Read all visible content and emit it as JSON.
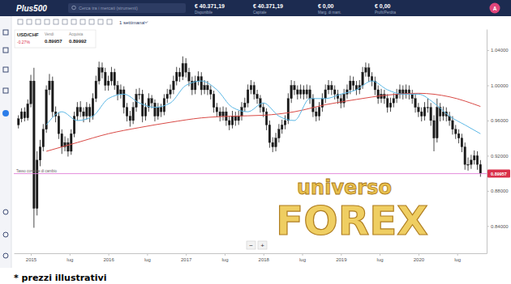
{
  "header": {
    "logo": "Plus500",
    "search": "Cerca tra i mercati (strumenti)",
    "account": [
      {
        "value": "€ 40.371,19",
        "label": "Disponibile"
      },
      {
        "value": "€ 40.371,19",
        "label": "Capitale"
      },
      {
        "value": "€ 0,00",
        "label": "Marg. di mant."
      },
      {
        "value": "€ 0,00",
        "label": "Profit/Perdita"
      }
    ],
    "avatar": "A"
  },
  "toolbar": {
    "timeframe": "1 settimana"
  },
  "instrument": {
    "symbol": "USD/CHF",
    "change": "-0.27%",
    "sell_label": "Vendi",
    "sell": "0.89957",
    "buy_label": "Acquista",
    "buy": "0.89992"
  },
  "chart_data": {
    "type": "candlestick",
    "grid": false,
    "x": [
      2014.84,
      2014.88,
      2014.92,
      2014.96,
      2015,
      2015.04,
      2015.08,
      2015.12,
      2015.16,
      2015.2,
      2015.24,
      2015.28,
      2015.32,
      2015.36,
      2015.4,
      2015.44,
      2015.48,
      2015.52,
      2015.56,
      2015.6,
      2015.64,
      2015.68,
      2015.72,
      2015.76,
      2015.8,
      2015.84,
      2015.88,
      2015.92,
      2015.96,
      2016,
      2016.04,
      2016.08,
      2016.12,
      2016.16,
      2016.2,
      2016.24,
      2016.28,
      2016.32,
      2016.36,
      2016.4,
      2016.44,
      2016.48,
      2016.52,
      2016.56,
      2016.6,
      2016.64,
      2016.68,
      2016.72,
      2016.76,
      2016.8,
      2016.84,
      2016.88,
      2016.92,
      2016.96,
      2017,
      2017.04,
      2017.08,
      2017.12,
      2017.16,
      2017.2,
      2017.24,
      2017.28,
      2017.32,
      2017.36,
      2017.4,
      2017.44,
      2017.48,
      2017.52,
      2017.56,
      2017.6,
      2017.64,
      2017.68,
      2017.72,
      2017.76,
      2017.8,
      2017.84,
      2017.88,
      2017.92,
      2017.96,
      2018,
      2018.04,
      2018.08,
      2018.12,
      2018.16,
      2018.2,
      2018.24,
      2018.28,
      2018.32,
      2018.36,
      2018.4,
      2018.44,
      2018.48,
      2018.52,
      2018.56,
      2018.6,
      2018.64,
      2018.68,
      2018.72,
      2018.76,
      2018.8,
      2018.84,
      2018.88,
      2018.92,
      2018.96,
      2019,
      2019.04,
      2019.08,
      2019.12,
      2019.16,
      2019.2,
      2019.24,
      2019.28,
      2019.32,
      2019.36,
      2019.4,
      2019.44,
      2019.48,
      2019.52,
      2019.56,
      2019.6,
      2019.64,
      2019.68,
      2019.72,
      2019.76,
      2019.8,
      2019.84,
      2019.88,
      2019.92,
      2019.96,
      2020,
      2020.04,
      2020.08,
      2020.12,
      2020.16,
      2020.2,
      2020.24,
      2020.28,
      2020.32,
      2020.36,
      2020.4,
      2020.44,
      2020.48,
      2020.52,
      2020.56,
      2020.6,
      2020.64,
      2020.68,
      2020.72,
      2020.76,
      2020.8
    ],
    "xlim": [
      2014.78,
      2020.88
    ],
    "xticks": [
      2015,
      {
        "value": 2015.5,
        "label": "lug"
      },
      2016,
      {
        "value": 2016.5,
        "label": "lug"
      },
      2017,
      {
        "value": 2017.5,
        "label": "lug"
      },
      2018,
      {
        "value": 2018.5,
        "label": "lug"
      },
      2019,
      {
        "value": 2019.5,
        "label": "lug"
      },
      2020,
      {
        "value": 2020.5,
        "label": "lug"
      }
    ],
    "ylim": [
      0.809,
      1.064
    ],
    "yticks": [
      {
        "value": 0.84,
        "label": "0.84000"
      },
      {
        "value": 0.88,
        "label": "0.88000"
      },
      {
        "value": 0.92,
        "label": "0.92000"
      },
      {
        "value": 0.96,
        "label": "0.96000"
      },
      {
        "value": 1,
        "label": "1.00000"
      },
      {
        "value": 1.04,
        "label": "1.04000"
      }
    ],
    "series": [
      {
        "type": "candlestick",
        "color": "#1a1a1a",
        "open": [
          0.955,
          0.962,
          0.97,
          0.963,
          0.979,
          1.005,
          0.86,
          0.915,
          0.93,
          0.95,
          0.995,
          1.005,
          0.97,
          0.965,
          0.945,
          0.93,
          0.935,
          0.925,
          0.945,
          0.965,
          0.975,
          0.97,
          0.965,
          0.975,
          0.965,
          0.985,
          1.005,
          1.02,
          1.015,
          1.0,
          1.005,
          1.015,
          1.0,
          0.99,
          0.995,
          0.975,
          0.965,
          0.96,
          0.975,
          0.99,
          0.99,
          0.965,
          0.975,
          0.985,
          0.98,
          0.965,
          0.975,
          0.97,
          0.985,
          0.99,
          0.995,
          1.005,
          1.015,
          1.01,
          1.025,
          1.015,
          1.005,
          0.995,
          1.005,
          1.01,
          0.995,
          1.0,
          0.995,
          0.99,
          0.975,
          0.97,
          0.965,
          0.97,
          0.96,
          0.955,
          0.965,
          0.96,
          0.965,
          0.975,
          0.98,
          0.995,
          1.0,
          0.99,
          0.985,
          0.975,
          0.97,
          0.955,
          0.935,
          0.93,
          0.94,
          0.95,
          0.955,
          0.96,
          0.985,
          1.0,
          0.995,
          0.99,
          0.995,
          0.99,
          0.995,
          0.985,
          0.97,
          0.965,
          0.975,
          0.985,
          0.995,
          1.0,
          0.995,
          0.99,
          0.985,
          0.98,
          0.99,
          0.995,
          1.005,
          1.0,
          0.995,
          1.0,
          1.015,
          1.02,
          1.01,
          1.005,
          0.995,
          0.985,
          0.99,
          0.985,
          0.975,
          0.98,
          0.985,
          0.99,
          0.995,
          0.99,
          0.995,
          0.99,
          0.985,
          0.975,
          0.97,
          0.965,
          0.975,
          0.975,
          0.96,
          0.94,
          0.975,
          0.965,
          0.97,
          0.965,
          0.96,
          0.95,
          0.945,
          0.94,
          0.93,
          0.91,
          0.91,
          0.915,
          0.92,
          0.91
        ],
        "high": [
          0.966,
          0.974,
          0.975,
          0.984,
          1.012,
          1.02,
          0.925,
          0.938,
          0.956,
          1.0,
          1.013,
          1.01,
          0.976,
          0.969,
          0.95,
          0.942,
          0.94,
          0.95,
          0.97,
          0.981,
          0.982,
          0.975,
          0.981,
          0.979,
          0.991,
          1.011,
          1.027,
          1.026,
          1.02,
          1.011,
          1.021,
          1.019,
          1.005,
          1.001,
          0.999,
          0.98,
          0.971,
          0.981,
          0.996,
          0.997,
          0.995,
          0.98,
          0.991,
          0.989,
          0.984,
          0.98,
          0.979,
          0.99,
          0.996,
          1.001,
          1.011,
          1.021,
          1.02,
          1.033,
          1.031,
          1.02,
          1.01,
          1.011,
          1.016,
          1.015,
          1.006,
          1.005,
          1.0,
          0.994,
          0.98,
          0.975,
          0.976,
          0.975,
          0.965,
          0.971,
          0.97,
          0.971,
          0.981,
          0.986,
          1.001,
          1.006,
          1.004,
          0.995,
          0.989,
          0.98,
          0.974,
          0.96,
          0.941,
          0.946,
          0.956,
          0.961,
          0.966,
          0.991,
          1.006,
          1.005,
          1.0,
          1.001,
          1.0,
          1.001,
          1.0,
          0.99,
          0.975,
          0.981,
          0.991,
          1.001,
          1.006,
          1.005,
          1.0,
          0.995,
          0.99,
          0.996,
          1.001,
          1.011,
          1.01,
          1.005,
          1.006,
          1.021,
          1.026,
          1.025,
          1.015,
          1.01,
          1.0,
          0.996,
          0.995,
          0.99,
          0.986,
          0.991,
          0.996,
          1.001,
          1.0,
          1.001,
          1.0,
          0.995,
          0.99,
          0.98,
          0.975,
          0.981,
          0.985,
          0.98,
          0.966,
          0.985,
          0.98,
          0.976,
          0.975,
          0.97,
          0.965,
          0.955,
          0.95,
          0.945,
          0.935,
          0.918,
          0.921,
          0.926,
          0.925,
          0.915
        ],
        "low": [
          0.951,
          0.958,
          0.959,
          0.96,
          0.975,
          0.838,
          0.852,
          0.908,
          0.925,
          0.946,
          0.989,
          0.964,
          0.958,
          0.939,
          0.922,
          0.925,
          0.919,
          0.921,
          0.941,
          0.96,
          0.964,
          0.958,
          0.961,
          0.958,
          0.961,
          0.981,
          1.001,
          1.008,
          0.994,
          0.994,
          1.0,
          0.995,
          0.983,
          0.985,
          0.968,
          0.959,
          0.953,
          0.956,
          0.97,
          0.984,
          0.958,
          0.96,
          0.97,
          0.974,
          0.959,
          0.961,
          0.964,
          0.966,
          0.98,
          0.985,
          0.99,
          1.0,
          1.004,
          1.006,
          1.009,
          0.999,
          0.989,
          0.99,
          1.0,
          0.989,
          0.99,
          0.989,
          0.984,
          0.969,
          0.964,
          0.959,
          0.96,
          0.954,
          0.949,
          0.951,
          0.954,
          0.955,
          0.96,
          0.97,
          0.975,
          0.99,
          0.984,
          0.979,
          0.969,
          0.964,
          0.949,
          0.929,
          0.924,
          0.925,
          0.935,
          0.945,
          0.95,
          0.956,
          0.98,
          0.989,
          0.984,
          0.985,
          0.984,
          0.985,
          0.979,
          0.964,
          0.959,
          0.96,
          0.97,
          0.98,
          0.99,
          0.989,
          0.984,
          0.979,
          0.974,
          0.975,
          0.985,
          0.99,
          0.994,
          0.989,
          0.99,
          0.996,
          1.01,
          1.004,
          0.999,
          0.989,
          0.979,
          0.98,
          0.979,
          0.969,
          0.97,
          0.975,
          0.98,
          0.985,
          0.984,
          0.985,
          0.984,
          0.979,
          0.969,
          0.964,
          0.959,
          0.96,
          0.969,
          0.954,
          0.925,
          0.935,
          0.959,
          0.96,
          0.959,
          0.954,
          0.944,
          0.939,
          0.934,
          0.924,
          0.904,
          0.903,
          0.905,
          0.91,
          0.904,
          0.896
        ],
        "close": [
          0.962,
          0.97,
          0.963,
          0.979,
          1.005,
          0.86,
          0.915,
          0.93,
          0.95,
          0.995,
          1.005,
          0.97,
          0.965,
          0.945,
          0.93,
          0.935,
          0.925,
          0.945,
          0.965,
          0.975,
          0.97,
          0.965,
          0.975,
          0.965,
          0.985,
          1.005,
          1.02,
          1.015,
          1.0,
          1.005,
          1.015,
          1.0,
          0.99,
          0.995,
          0.975,
          0.965,
          0.96,
          0.975,
          0.99,
          0.99,
          0.965,
          0.975,
          0.985,
          0.98,
          0.965,
          0.975,
          0.97,
          0.985,
          0.99,
          0.995,
          1.005,
          1.015,
          1.01,
          1.025,
          1.015,
          1.005,
          0.995,
          1.005,
          1.01,
          0.995,
          1.0,
          0.995,
          0.99,
          0.975,
          0.97,
          0.965,
          0.97,
          0.96,
          0.955,
          0.965,
          0.96,
          0.965,
          0.975,
          0.98,
          0.995,
          1.0,
          0.99,
          0.985,
          0.975,
          0.97,
          0.955,
          0.935,
          0.93,
          0.94,
          0.95,
          0.955,
          0.96,
          0.985,
          1.0,
          0.995,
          0.99,
          0.995,
          0.99,
          0.995,
          0.985,
          0.97,
          0.965,
          0.975,
          0.985,
          0.995,
          1.0,
          0.995,
          0.99,
          0.985,
          0.98,
          0.99,
          0.995,
          1.005,
          1.0,
          0.995,
          1.0,
          1.015,
          1.02,
          1.01,
          1.005,
          0.995,
          0.985,
          0.99,
          0.985,
          0.975,
          0.98,
          0.985,
          0.99,
          0.995,
          0.99,
          0.995,
          0.99,
          0.985,
          0.975,
          0.97,
          0.965,
          0.975,
          0.975,
          0.96,
          0.94,
          0.975,
          0.965,
          0.97,
          0.965,
          0.96,
          0.95,
          0.945,
          0.94,
          0.93,
          0.91,
          0.91,
          0.915,
          0.92,
          0.91,
          0.9
        ]
      },
      {
        "type": "line",
        "color": "#d94a46",
        "x": [
          2015.2,
          2015.6,
          2016,
          2016.4,
          2016.8,
          2017.2,
          2017.6,
          2018,
          2018.4,
          2018.8,
          2019.2,
          2019.6,
          2020,
          2020.4,
          2020.8
        ],
        "values": [
          0.925,
          0.935,
          0.945,
          0.952,
          0.958,
          0.963,
          0.965,
          0.966,
          0.97,
          0.978,
          0.984,
          0.989,
          0.991,
          0.987,
          0.976
        ]
      },
      {
        "type": "line",
        "color": "#5bb8e6",
        "x": [
          2015.2,
          2015.4,
          2015.6,
          2015.8,
          2016,
          2016.2,
          2016.4,
          2016.6,
          2016.8,
          2017,
          2017.2,
          2017.4,
          2017.6,
          2017.8,
          2018,
          2018.2,
          2018.4,
          2018.6,
          2018.8,
          2019,
          2019.2,
          2019.4,
          2019.6,
          2019.8,
          2020,
          2020.2,
          2020.4,
          2020.6,
          2020.8
        ],
        "values": [
          0.955,
          0.97,
          0.96,
          0.965,
          0.985,
          0.99,
          0.98,
          0.975,
          0.98,
          1.0,
          1.005,
          0.995,
          0.975,
          0.97,
          0.98,
          0.965,
          0.96,
          0.985,
          0.985,
          0.99,
          0.995,
          1.005,
          0.995,
          0.99,
          0.99,
          0.98,
          0.965,
          0.955,
          0.945
        ]
      }
    ],
    "annotations": [
      {
        "text": "Tasso corrente di cambio",
        "y": 0.89957,
        "label": "0.89957",
        "color": "#e07fd6"
      }
    ]
  },
  "zoom": [
    "−",
    "+"
  ],
  "watermark": [
    "universo",
    "FOREX"
  ],
  "caption": "* prezzi illustrativi"
}
